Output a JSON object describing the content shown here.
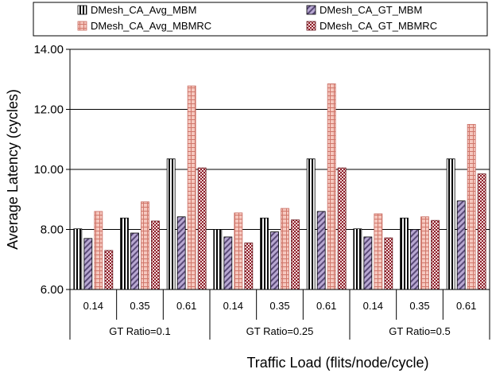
{
  "chart_data": {
    "type": "bar",
    "title": "",
    "xlabel": "Traffic Load (flits/node/cycle)",
    "ylabel": "Average Latency (cycles)",
    "ylim": [
      6.0,
      14.0
    ],
    "yticks": [
      "6.00",
      "8.00",
      "10.00",
      "12.00",
      "14.00"
    ],
    "grid": "horizontal major lines",
    "legend_position": "top",
    "groups": [
      {
        "label": "GT Ratio=0.1",
        "categories": [
          "0.14",
          "0.35",
          "0.61"
        ]
      },
      {
        "label": "GT Ratio=0.25",
        "categories": [
          "0.14",
          "0.35",
          "0.61"
        ]
      },
      {
        "label": "GT Ratio=0.5",
        "categories": [
          "0.14",
          "0.35",
          "0.61"
        ]
      }
    ],
    "categories": [
      "0.14",
      "0.35",
      "0.61",
      "0.14",
      "0.35",
      "0.61",
      "0.14",
      "0.35",
      "0.61"
    ],
    "series": [
      {
        "name": "DMesh_CA_Avg_MBM",
        "pattern": "vertical-stripes",
        "color": "#ffffff",
        "stroke": "#000000",
        "values": [
          8.02,
          8.38,
          10.35,
          8.0,
          8.38,
          10.35,
          8.02,
          8.38,
          10.35
        ]
      },
      {
        "name": "DMesh_CA_GT_MBM",
        "pattern": "diagonal-stripes",
        "color": "#a896c4",
        "stroke": "#000000",
        "values": [
          7.7,
          7.88,
          8.42,
          7.75,
          7.92,
          8.6,
          7.75,
          8.0,
          8.95
        ]
      },
      {
        "name": "DMesh_CA_Avg_MBMRC",
        "pattern": "grid",
        "color": "#f2b4a9",
        "stroke": "#c86a60",
        "values": [
          8.6,
          8.92,
          12.78,
          8.55,
          8.7,
          12.85,
          8.52,
          8.42,
          11.5
        ]
      },
      {
        "name": "DMesh_CA_GT_MBMRC",
        "pattern": "checker",
        "color": "#a0343c",
        "stroke": "#6a1a20",
        "values": [
          7.3,
          8.28,
          10.05,
          7.55,
          8.32,
          10.05,
          7.72,
          8.3,
          9.85
        ]
      }
    ]
  }
}
